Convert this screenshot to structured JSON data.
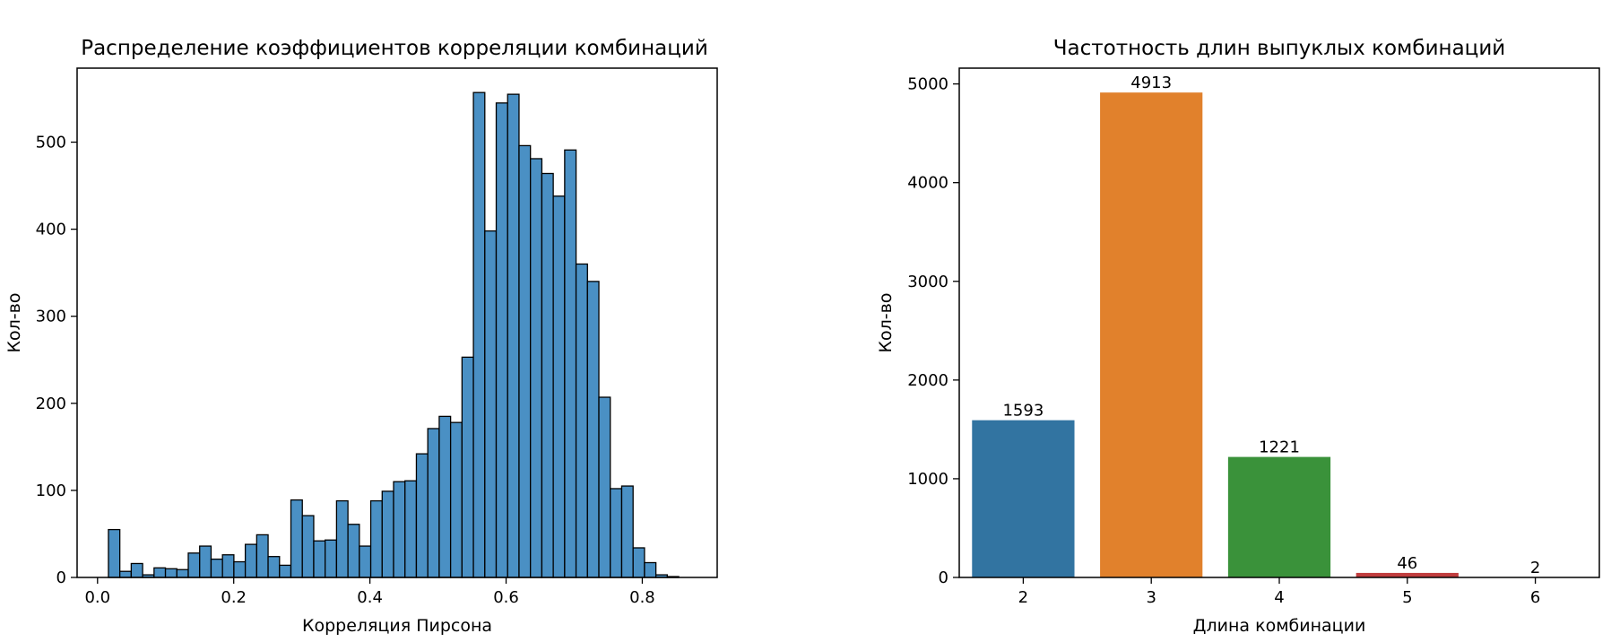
{
  "chart_data": [
    {
      "type": "bar",
      "subtype": "histogram",
      "title": "Распределение коэффициентов корреляции комбинаций",
      "xlabel": "Корреляция Пирсона",
      "ylabel": "Кол-во",
      "xlim": [
        -0.03,
        0.91
      ],
      "ylim": [
        0,
        585
      ],
      "xticks": [
        "0.0",
        "0.2",
        "0.4",
        "0.6",
        "0.8"
      ],
      "yticks": [
        "0",
        "100",
        "200",
        "300",
        "400",
        "500"
      ],
      "bin_start": 0.016,
      "bin_width": 0.01675,
      "values": [
        55,
        7,
        16,
        3,
        11,
        10,
        9,
        28,
        36,
        21,
        26,
        18,
        38,
        49,
        24,
        14,
        89,
        71,
        42,
        43,
        88,
        61,
        36,
        88,
        99,
        110,
        111,
        142,
        171,
        185,
        178,
        253,
        557,
        398,
        545,
        555,
        496,
        481,
        464,
        438,
        491,
        360,
        340,
        207,
        102,
        105,
        34,
        17,
        3,
        1
      ],
      "color": "#4a90c4",
      "edge_color": "#000000",
      "grid": false
    },
    {
      "type": "bar",
      "title": "Частотность длин выпуклых комбинаций",
      "xlabel": "Длина комбинации",
      "ylabel": "Кол-во",
      "categories": [
        "2",
        "3",
        "4",
        "5",
        "6"
      ],
      "values": [
        1593,
        4913,
        1221,
        46,
        2
      ],
      "data_labels": [
        "1593",
        "4913",
        "1221",
        "46",
        "2"
      ],
      "colors": [
        "#3274a1",
        "#e1812c",
        "#3a923a",
        "#c03d3e",
        "#9372b2"
      ],
      "yticks": [
        "0",
        "1000",
        "2000",
        "3000",
        "4000",
        "5000"
      ],
      "ylim": [
        0,
        5160
      ],
      "grid": false
    }
  ]
}
